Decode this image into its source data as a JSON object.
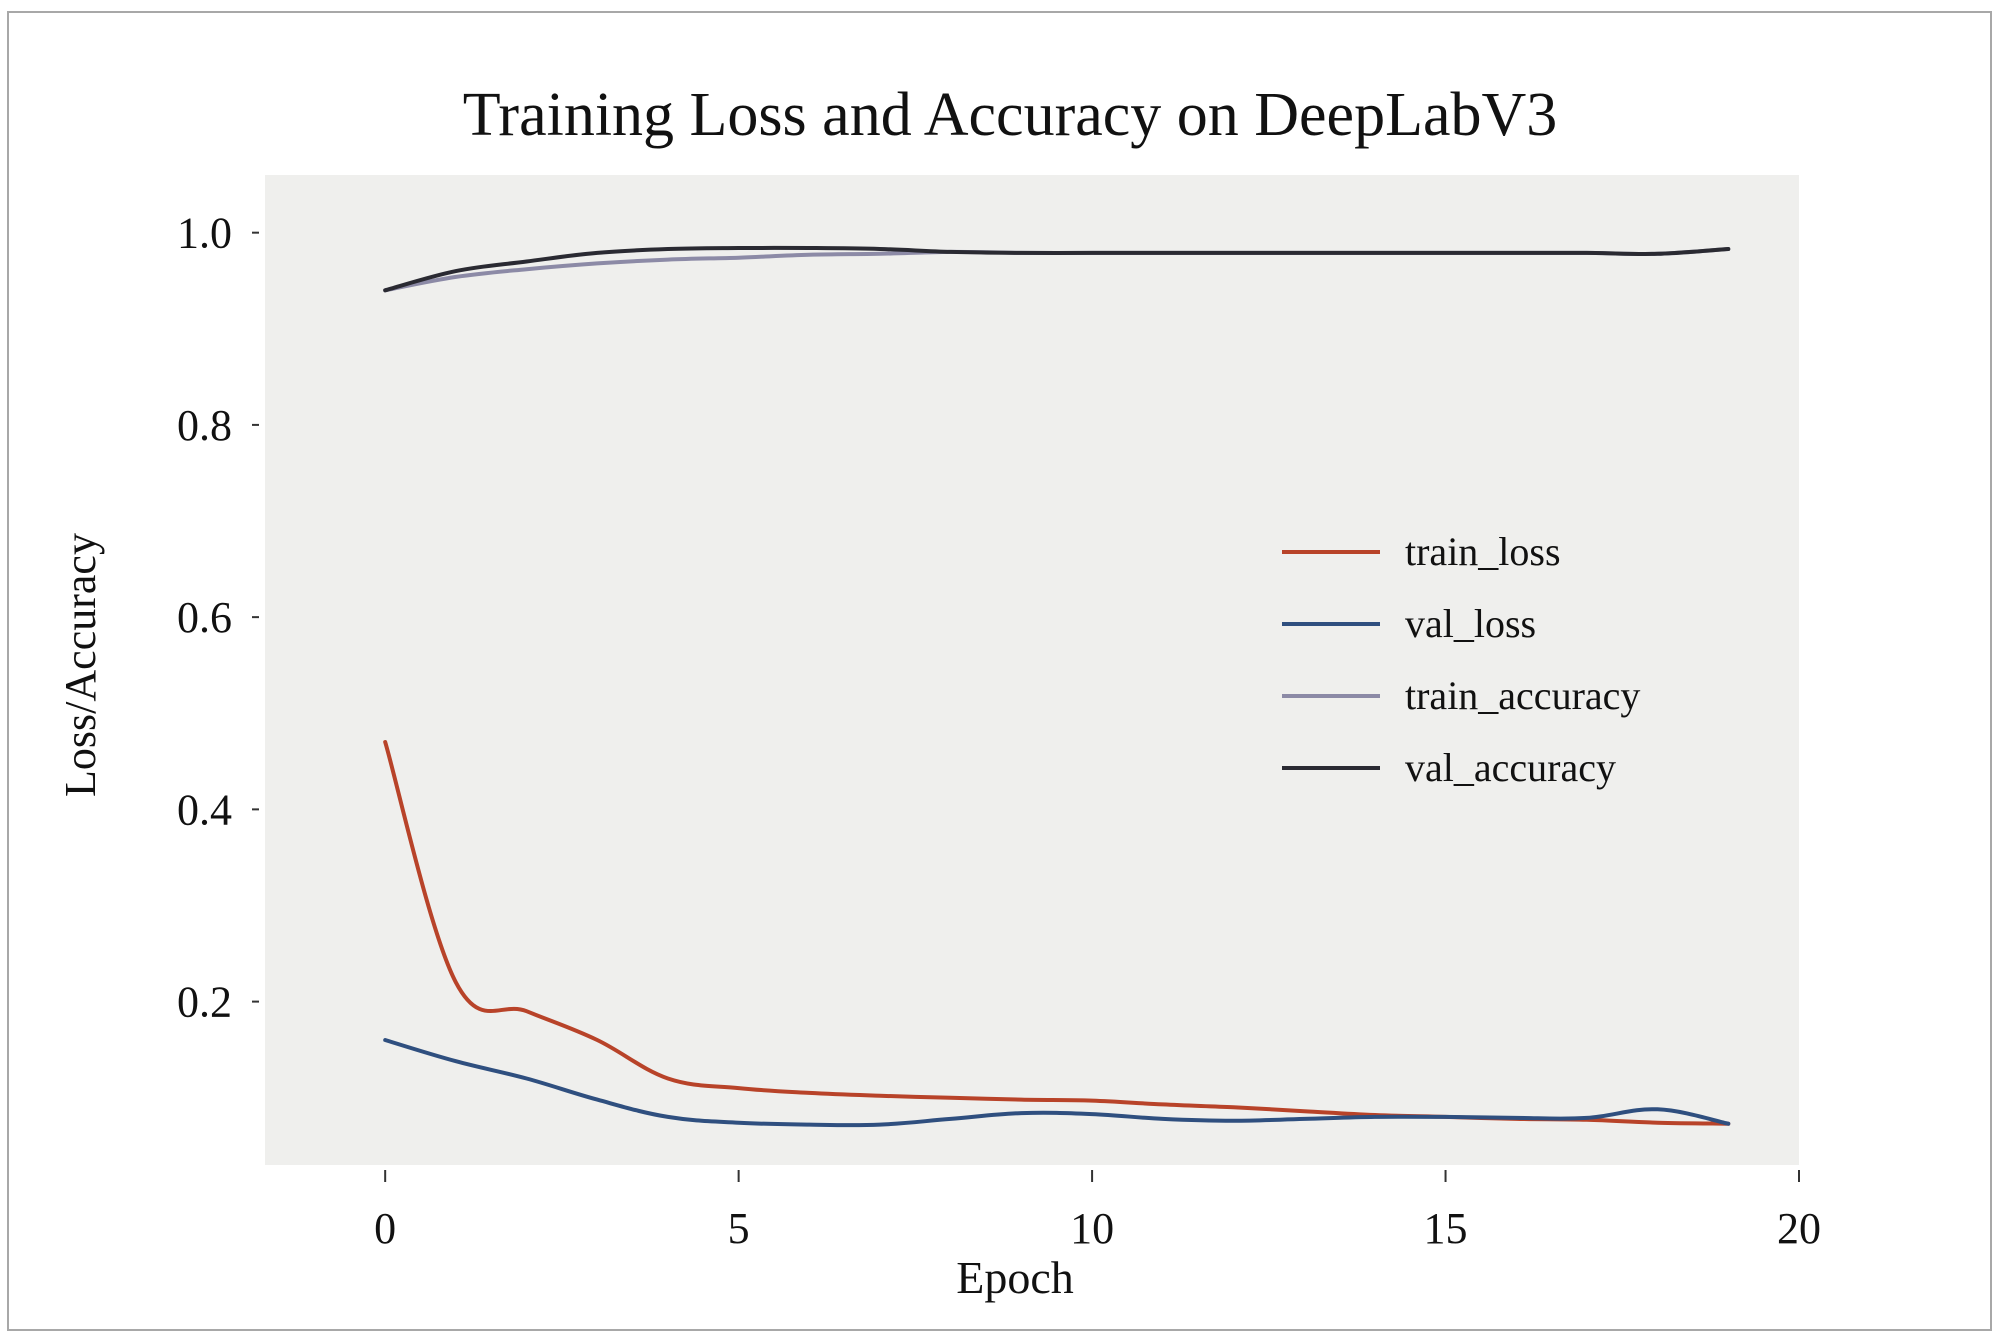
{
  "colors": {
    "background": "#ffffff",
    "plot_background": "#efefed",
    "border": "#a8a8a8",
    "train_loss": "#b84329",
    "val_loss": "#2f4f7f",
    "train_accuracy": "#8c8aa6",
    "val_accuracy": "#2a2a32",
    "text": "#111111"
  },
  "chart_data": {
    "type": "line",
    "title": "Training Loss and Accuracy on DeepLabV3",
    "xlabel": "Epoch",
    "ylabel": "Loss/Accuracy",
    "xlim": [
      -1.7,
      20
    ],
    "ylim": [
      0.03,
      1.06
    ],
    "x_ticks": [
      0,
      5,
      10,
      15,
      20
    ],
    "x_tick_labels": [
      "0",
      "5",
      "10",
      "15",
      "20"
    ],
    "y_ticks": [
      0.2,
      0.4,
      0.6,
      0.8,
      1.0
    ],
    "y_tick_labels": [
      "0.2",
      "0.4",
      "0.6",
      "0.8",
      "1.0"
    ],
    "grid": false,
    "legend_position": "center-right",
    "x": [
      0,
      1,
      2,
      3,
      4,
      5,
      6,
      7,
      8,
      9,
      10,
      11,
      12,
      13,
      14,
      15,
      16,
      17,
      18,
      19
    ],
    "series": [
      {
        "name": "train_loss",
        "color": "#b84329",
        "values": [
          0.47,
          0.22,
          0.19,
          0.16,
          0.12,
          0.11,
          0.105,
          0.102,
          0.1,
          0.098,
          0.097,
          0.093,
          0.09,
          0.086,
          0.082,
          0.08,
          0.078,
          0.077,
          0.074,
          0.073
        ]
      },
      {
        "name": "val_loss",
        "color": "#2f4f7f",
        "values": [
          0.16,
          0.138,
          0.12,
          0.098,
          0.08,
          0.074,
          0.072,
          0.072,
          0.078,
          0.084,
          0.083,
          0.078,
          0.076,
          0.078,
          0.08,
          0.08,
          0.079,
          0.079,
          0.088,
          0.073
        ]
      },
      {
        "name": "train_accuracy",
        "color": "#8c8aa6",
        "values": [
          0.94,
          0.954,
          0.962,
          0.968,
          0.972,
          0.974,
          0.977,
          0.978,
          0.98,
          0.979,
          0.979,
          0.979,
          0.979,
          0.979,
          0.979,
          0.979,
          0.979,
          0.979,
          0.978,
          0.983
        ]
      },
      {
        "name": "val_accuracy",
        "color": "#2a2a32",
        "values": [
          0.94,
          0.96,
          0.97,
          0.979,
          0.983,
          0.984,
          0.984,
          0.983,
          0.98,
          0.979,
          0.979,
          0.979,
          0.979,
          0.979,
          0.979,
          0.979,
          0.979,
          0.979,
          0.978,
          0.983
        ]
      }
    ]
  }
}
